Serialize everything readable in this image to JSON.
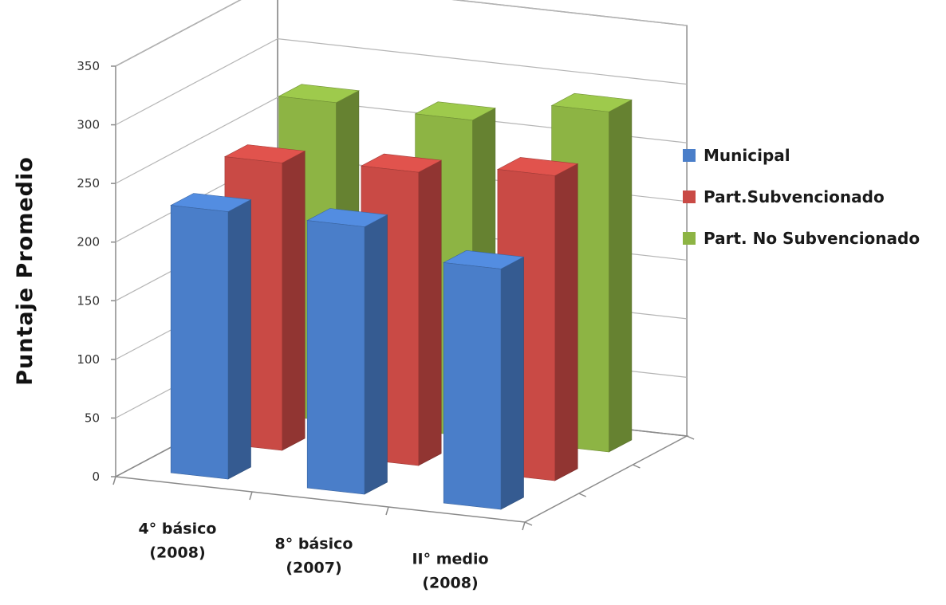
{
  "chart_data": {
    "type": "bar",
    "subtype": "3d-clustered-columns",
    "title": "",
    "xlabel": "",
    "ylabel": "Puntaje Promedio",
    "ylim": [
      0,
      350
    ],
    "yticks": [
      0,
      50,
      100,
      150,
      200,
      250,
      300,
      350
    ],
    "grid": true,
    "legend_position": "right",
    "categories": [
      [
        "4° básico",
        "(2008)"
      ],
      [
        "8° básico",
        "(2007)"
      ],
      [
        "II° medio",
        "(2008)"
      ]
    ],
    "series": [
      {
        "name": "Municipal",
        "color": "#4a7ec9",
        "values": [
          228,
          228,
          205
        ]
      },
      {
        "name": "Part.Subvencionado",
        "color": "#c94a45",
        "values": [
          245,
          250,
          260
        ]
      },
      {
        "name": "Part. No Subvencionado",
        "color": "#8db444",
        "values": [
          272,
          270,
          290
        ]
      }
    ]
  }
}
